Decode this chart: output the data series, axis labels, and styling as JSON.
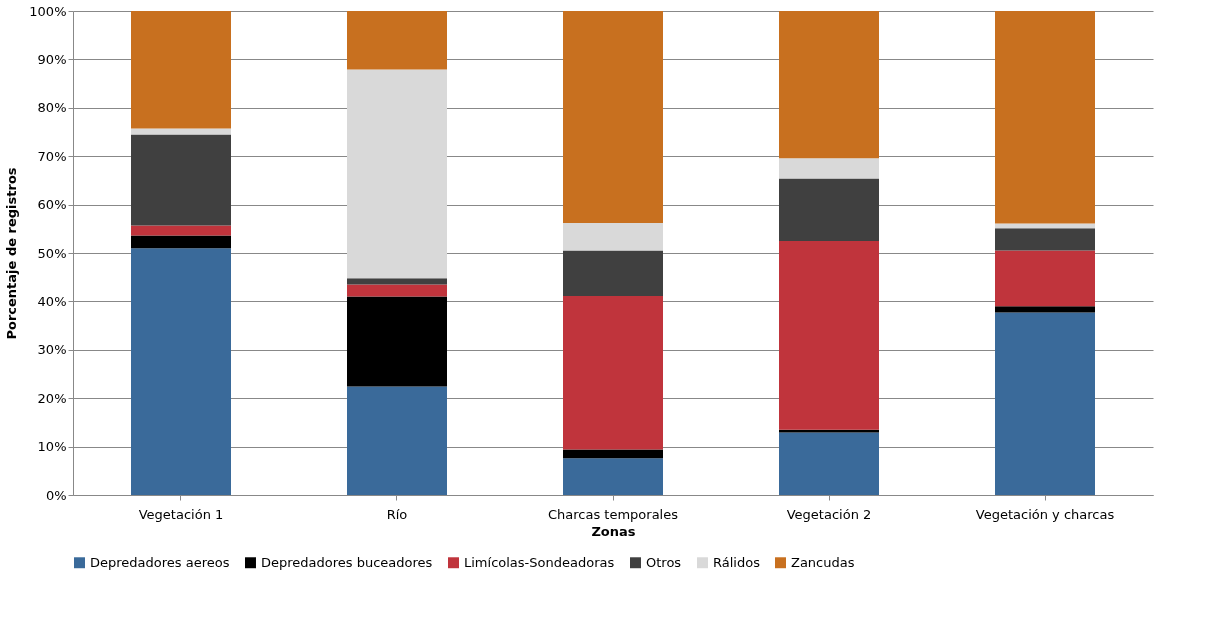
{
  "chart_data": {
    "type": "bar",
    "stacked": true,
    "xlabel": "Zonas",
    "ylabel": "Porcentaje de registros",
    "categories": [
      "Vegetación 1",
      "Río",
      "Charcas temporales",
      "Vegetación 2",
      "Vegetación y charcas"
    ],
    "ylim": [
      0,
      100
    ],
    "yticks": [
      {
        "value": 0,
        "label": "0%"
      },
      {
        "value": 10,
        "label": "10%"
      },
      {
        "value": 20,
        "label": "20%"
      },
      {
        "value": 30,
        "label": "30%"
      },
      {
        "value": 40,
        "label": "40%"
      },
      {
        "value": 50,
        "label": "50%"
      },
      {
        "value": 60,
        "label": "60%"
      },
      {
        "value": 70,
        "label": "70%"
      },
      {
        "value": 80,
        "label": "80%"
      },
      {
        "value": 90,
        "label": "90%"
      },
      {
        "value": 100,
        "label": "100%"
      }
    ],
    "grid": "y",
    "legend": "bottom",
    "series": [
      {
        "name": "Depredadores aereos",
        "color": "#3a6a9a",
        "values": [
          51.0,
          22.4,
          7.6,
          12.9,
          37.7
        ]
      },
      {
        "name": "Depredadores buceadores",
        "color": "#000000",
        "values": [
          2.6,
          18.6,
          1.8,
          0.6,
          1.3
        ]
      },
      {
        "name": "Limícolas-Sondeadoras",
        "color": "#c0343c",
        "values": [
          2.1,
          2.5,
          31.7,
          39.0,
          11.5
        ]
      },
      {
        "name": "Otros",
        "color": "#404040",
        "values": [
          18.8,
          1.3,
          9.4,
          12.9,
          4.6
        ]
      },
      {
        "name": "Rálidos",
        "color": "#d9d9d9",
        "values": [
          1.2,
          43.1,
          5.7,
          4.2,
          1.0
        ]
      },
      {
        "name": "Zancudas",
        "color": "#c8701f",
        "values": [
          24.3,
          12.1,
          43.8,
          30.4,
          43.9
        ]
      }
    ]
  }
}
